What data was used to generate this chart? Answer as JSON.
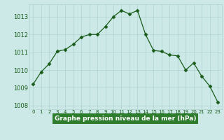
{
  "x": [
    0,
    1,
    2,
    3,
    4,
    5,
    6,
    7,
    8,
    9,
    10,
    11,
    12,
    13,
    14,
    15,
    16,
    17,
    18,
    19,
    20,
    21,
    22,
    23
  ],
  "y": [
    1009.2,
    1009.9,
    1010.35,
    1011.05,
    1011.15,
    1011.45,
    1011.85,
    1012.0,
    1012.0,
    1012.45,
    1013.0,
    1013.35,
    1013.15,
    1013.35,
    1012.0,
    1011.1,
    1011.05,
    1010.85,
    1010.8,
    1010.0,
    1010.4,
    1009.65,
    1009.1,
    1008.2
  ],
  "xlim": [
    -0.5,
    23.5
  ],
  "ylim": [
    1007.8,
    1013.7
  ],
  "yticks": [
    1008,
    1009,
    1010,
    1011,
    1012,
    1013
  ],
  "xticks": [
    0,
    1,
    2,
    3,
    4,
    5,
    6,
    7,
    8,
    9,
    10,
    11,
    12,
    13,
    14,
    15,
    16,
    17,
    18,
    19,
    20,
    21,
    22,
    23
  ],
  "xtick_labels": [
    "0",
    "1",
    "2",
    "3",
    "4",
    "5",
    "6",
    "7",
    "8",
    "9",
    "10",
    "11",
    "12",
    "13",
    "14",
    "15",
    "16",
    "17",
    "18",
    "19",
    "20",
    "21",
    "22",
    "23"
  ],
  "xlabel": "Graphe pression niveau de la mer (hPa)",
  "line_color": "#1a5c1a",
  "marker": "D",
  "marker_size": 2.5,
  "bg_color": "#cce9e8",
  "grid_color": "#aed4d3",
  "border_color": "#1a5c1a",
  "xlabel_bg": "#2e7d2e",
  "xlabel_fg": "#ffffff"
}
